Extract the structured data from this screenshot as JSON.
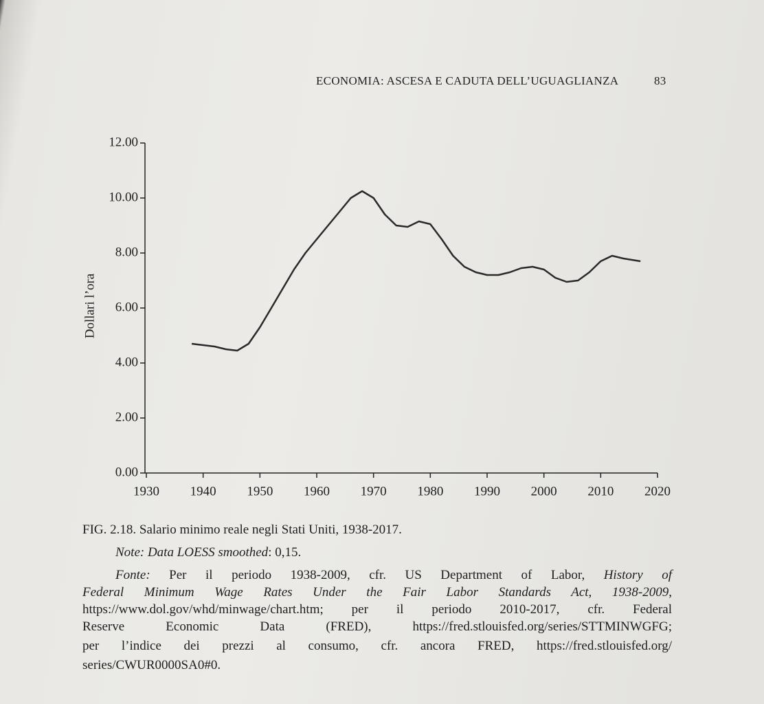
{
  "header": {
    "running_title": "ECONOMIA: ASCESA E CADUTA DELL’UGUAGLIANZA",
    "page_number": "83"
  },
  "chart_data": {
    "type": "line",
    "y_label": "Dollari l’ora",
    "x": [
      1938,
      1940,
      1942,
      1944,
      1946,
      1948,
      1950,
      1952,
      1954,
      1956,
      1958,
      1960,
      1962,
      1964,
      1966,
      1968,
      1970,
      1972,
      1974,
      1976,
      1978,
      1980,
      1982,
      1984,
      1986,
      1988,
      1990,
      1992,
      1994,
      1996,
      1998,
      2000,
      2002,
      2004,
      2006,
      2008,
      2010,
      2012,
      2014,
      2017
    ],
    "values": [
      4.7,
      4.65,
      4.6,
      4.5,
      4.45,
      4.7,
      5.3,
      6.0,
      6.7,
      7.4,
      8.0,
      8.5,
      9.0,
      9.5,
      10.0,
      10.25,
      10.0,
      9.4,
      9.0,
      8.95,
      9.15,
      9.05,
      8.5,
      7.9,
      7.5,
      7.3,
      7.2,
      7.2,
      7.3,
      7.45,
      7.5,
      7.4,
      7.1,
      6.95,
      7.0,
      7.3,
      7.7,
      7.9,
      7.8,
      7.7
    ],
    "color": "#2a2a2a",
    "xlim": [
      1930,
      2020
    ],
    "xticks": [
      1930,
      1940,
      1950,
      1960,
      1970,
      1980,
      1990,
      2000,
      2010,
      2020
    ],
    "ylim": [
      0,
      12
    ],
    "yticks": [
      {
        "value": 0,
        "label": "0.00"
      },
      {
        "value": 2,
        "label": "2.00"
      },
      {
        "value": 4,
        "label": "4.00"
      },
      {
        "value": 6,
        "label": "6.00"
      },
      {
        "value": 8,
        "label": "8.00"
      },
      {
        "value": 10,
        "label": "10.00"
      },
      {
        "value": 12,
        "label": "12.00"
      }
    ],
    "grid": false
  },
  "caption": {
    "figure": "FIG. 2.18.",
    "title": "Salario minimo reale negli Stati Uniti, 1938-2017.",
    "note": [
      "Note: Data LOESS smoothed",
      ": 0,15."
    ],
    "source": [
      [
        "Fonte:",
        " Per il periodo 1938-2009, cfr. US Department of Labor, ",
        "History of"
      ],
      [
        "Federal Minimum Wage Rates Under the Fair Labor Standards Act, 1938-2009",
        ","
      ],
      [
        "https://www.dol.gov/whd/minwage/chart.htm; per il periodo 2010-2017, cfr. Federal"
      ],
      [
        "Reserve Economic Data (FRED), https://fred.stlouisfed.org/series/STTMINWGFG;"
      ],
      [
        "per l’indice dei prezzi al consumo, cfr. ancora FRED, https://fred.stlouisfed.org/"
      ],
      [
        "series/CWUR0000SA0#0."
      ]
    ]
  }
}
